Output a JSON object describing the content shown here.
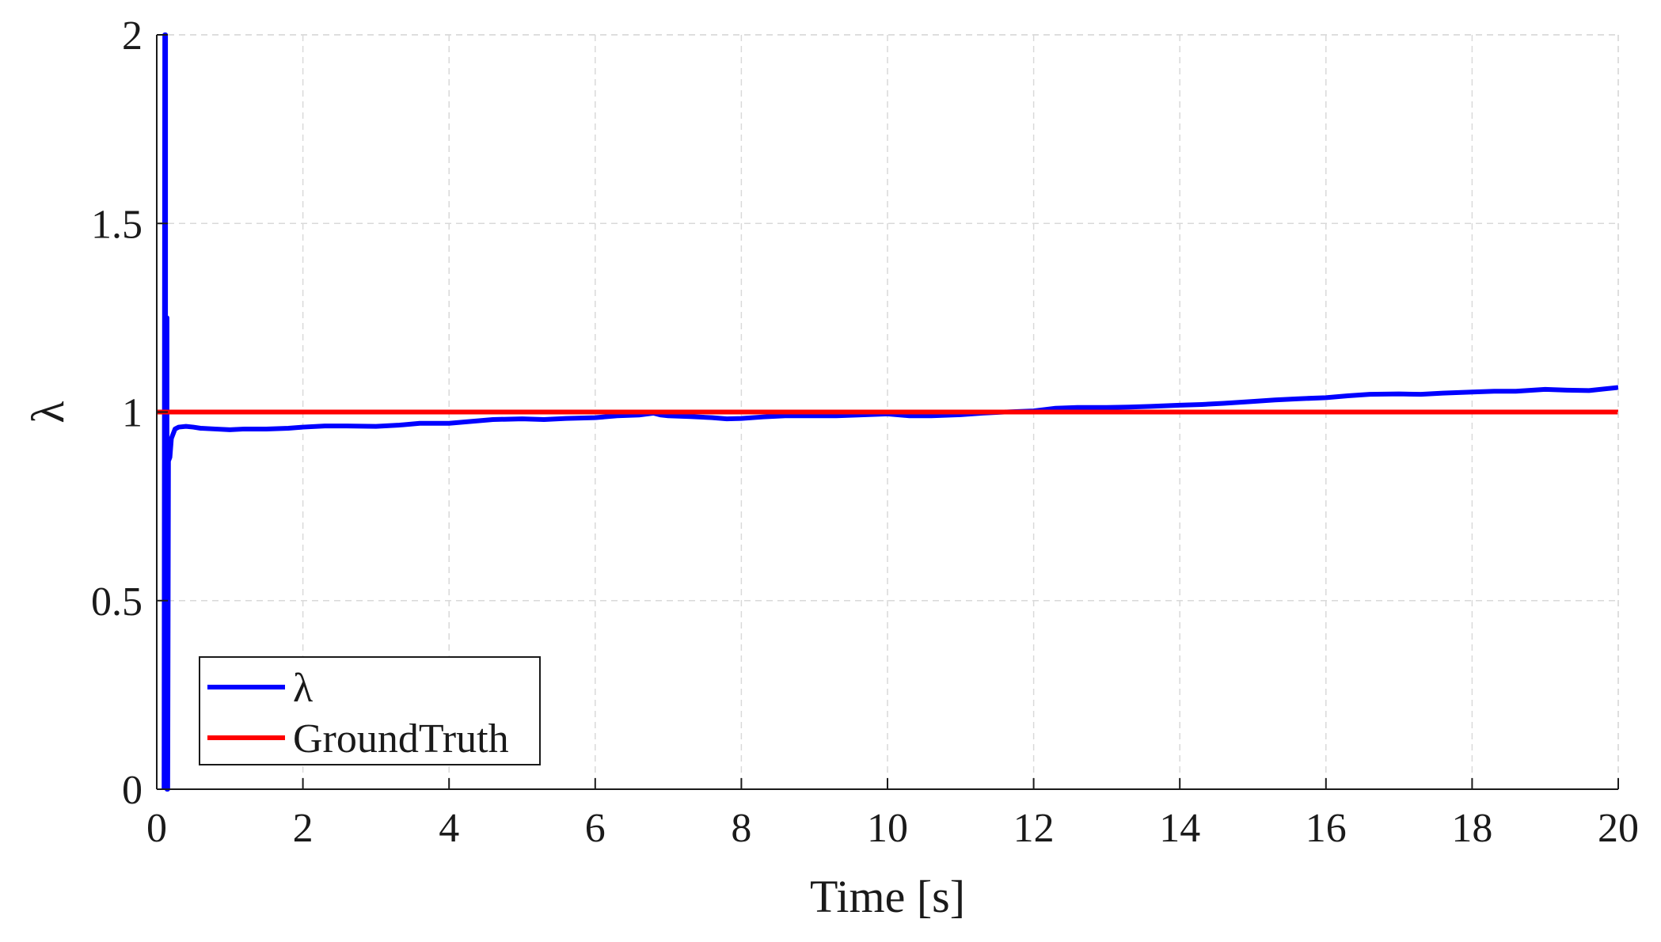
{
  "chart_data": {
    "type": "line",
    "title": "",
    "xlabel": "Time [s]",
    "ylabel": "λ",
    "xlim": [
      0,
      20
    ],
    "ylim": [
      0,
      2
    ],
    "xticks": [
      0,
      2,
      4,
      6,
      8,
      10,
      12,
      14,
      16,
      18,
      20
    ],
    "xtick_labels": [
      "0",
      "2",
      "4",
      "6",
      "8",
      "10",
      "12",
      "14",
      "16",
      "18",
      "20"
    ],
    "yticks": [
      0,
      0.5,
      1,
      1.5,
      2
    ],
    "ytick_labels": [
      "0",
      "0.5",
      "1",
      "1.5",
      "2"
    ],
    "grid": true,
    "legend_position": "bottom-left",
    "series": [
      {
        "name": "λ",
        "color": "#0000ff",
        "x": [
          0.1,
          0.11,
          0.12,
          0.12,
          0.13,
          0.13,
          0.14,
          0.14,
          0.15,
          0.16,
          0.18,
          0.2,
          0.25,
          0.3,
          0.4,
          0.5,
          0.6,
          0.8,
          1.0,
          1.2,
          1.5,
          1.8,
          2.0,
          2.3,
          2.6,
          3.0,
          3.3,
          3.6,
          4.0,
          4.3,
          4.6,
          5.0,
          5.3,
          5.6,
          6.0,
          6.3,
          6.6,
          6.8,
          6.9,
          7.0,
          7.3,
          7.6,
          7.8,
          8.0,
          8.3,
          8.6,
          9.0,
          9.3,
          9.6,
          10.0,
          10.3,
          10.6,
          11.0,
          11.3,
          11.6,
          12.0,
          12.3,
          12.6,
          13.0,
          13.3,
          13.6,
          14.0,
          14.3,
          14.6,
          15.0,
          15.3,
          15.6,
          16.0,
          16.3,
          16.6,
          17.0,
          17.3,
          17.6,
          18.0,
          18.3,
          18.6,
          19.0,
          19.3,
          19.6,
          20.0
        ],
        "y": [
          0.0,
          2.0,
          2.0,
          0.3,
          0.3,
          1.25,
          1.25,
          0.0,
          0.0,
          0.87,
          0.88,
          0.93,
          0.955,
          0.96,
          0.962,
          0.96,
          0.957,
          0.955,
          0.953,
          0.955,
          0.955,
          0.957,
          0.96,
          0.963,
          0.963,
          0.962,
          0.965,
          0.97,
          0.97,
          0.975,
          0.98,
          0.982,
          0.98,
          0.983,
          0.985,
          0.99,
          0.992,
          0.997,
          0.992,
          0.99,
          0.988,
          0.985,
          0.982,
          0.983,
          0.987,
          0.99,
          0.99,
          0.99,
          0.992,
          0.995,
          0.99,
          0.99,
          0.993,
          0.997,
          1.0,
          1.003,
          1.01,
          1.012,
          1.012,
          1.013,
          1.015,
          1.018,
          1.02,
          1.023,
          1.028,
          1.032,
          1.035,
          1.038,
          1.043,
          1.047,
          1.048,
          1.047,
          1.05,
          1.053,
          1.055,
          1.055,
          1.06,
          1.058,
          1.057,
          1.065
        ]
      },
      {
        "name": "GroundTruth",
        "color": "#ff0000",
        "x": [
          0,
          20
        ],
        "y": [
          1,
          1
        ]
      }
    ]
  }
}
